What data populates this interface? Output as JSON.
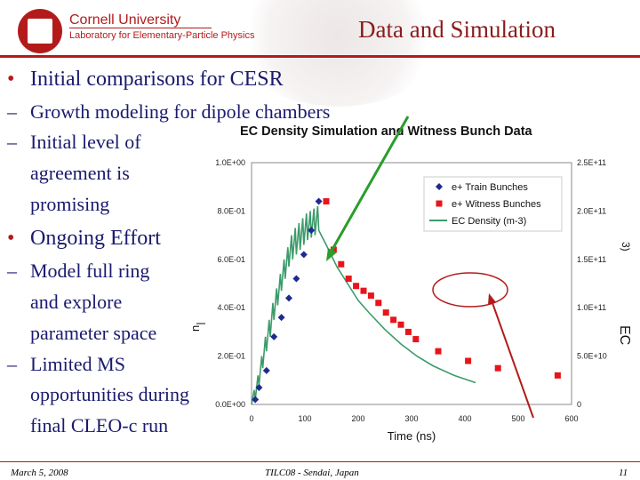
{
  "header": {
    "university": "Cornell University",
    "lab": "Laboratory for Elementary-Particle Physics",
    "title": "Data and Simulation"
  },
  "bullets": {
    "b1": "Initial comparisons for CESR",
    "b1_sub1": "Growth modeling for dipole chambers",
    "b1_sub2_l1": "Initial level of",
    "b1_sub2_l2": "agreement is",
    "b1_sub2_l3": "promising",
    "b2": "Ongoing Effort",
    "b2_sub1_l1": "Model full ring",
    "b2_sub1_l2": "and explore",
    "b2_sub1_l3": "parameter space",
    "b2_sub2_l1": "Limited MS",
    "b2_sub2_l2": "opportunities during",
    "b2_sub2_l3": "final CLEO-c run",
    "bullet_glyph": "•",
    "dash_glyph": "–"
  },
  "footer": {
    "date": "March 5, 2008",
    "venue": "TILC08 - Sendai, Japan",
    "page": "11"
  },
  "colors": {
    "accent": "#b31b1b",
    "bullet_text": "#1a1a6e",
    "train": "#1f2a8f",
    "witness": "#e8141a",
    "sim": "#3c9b6b",
    "green_arrow": "#2a9d2a",
    "red_annot": "#b31b1b"
  },
  "chart_data": {
    "type": "scatter",
    "title": "EC Density Simulation and Witness Bunch Data",
    "xlabel": "Time (ns)",
    "ylabel": "",
    "y2label": "",
    "xlim": [
      0,
      600
    ],
    "ylim": [
      0,
      1.0
    ],
    "y2lim": [
      0,
      250000000000
    ],
    "xticks": [
      "0",
      "100",
      "200",
      "300",
      "400",
      "500",
      "600"
    ],
    "yticks": [
      "0.0E+00",
      "2.0E-01",
      "4.0E-01",
      "6.0E-01",
      "8.0E-01",
      "1.0E+00"
    ],
    "y2ticks": [
      "0",
      "5.0E+10",
      "1.0E+11",
      "1.5E+11",
      "2.0E+11",
      "2.5E+11"
    ],
    "legend_position": "top-right",
    "series": [
      {
        "name": "e+ Train Bunches",
        "marker": "diamond",
        "x": [
          7,
          14,
          28,
          42,
          56,
          70,
          84,
          98,
          112,
          126
        ],
        "y": [
          0.02,
          0.07,
          0.14,
          0.28,
          0.36,
          0.44,
          0.52,
          0.62,
          0.72,
          0.84
        ]
      },
      {
        "name": "e+ Witness Bunches",
        "marker": "square",
        "x": [
          140,
          154,
          168,
          182,
          196,
          210,
          224,
          238,
          252,
          266,
          280,
          294,
          308,
          350,
          406,
          462,
          574
        ],
        "y": [
          0.84,
          0.64,
          0.58,
          0.52,
          0.49,
          0.47,
          0.45,
          0.42,
          0.38,
          0.35,
          0.33,
          0.3,
          0.27,
          0.22,
          0.18,
          0.15,
          0.12
        ]
      },
      {
        "name": "EC Density (m-3)",
        "line": true,
        "x": [
          0,
          5,
          7,
          12,
          14,
          19,
          21,
          26,
          28,
          33,
          35,
          40,
          42,
          47,
          49,
          54,
          56,
          61,
          63,
          68,
          70,
          75,
          77,
          82,
          84,
          89,
          91,
          96,
          98,
          103,
          105,
          110,
          112,
          117,
          119,
          124,
          126,
          140,
          160,
          180,
          200,
          220,
          250,
          280,
          310,
          340,
          380,
          420
        ],
        "y": [
          0.0,
          0.06,
          0.02,
          0.12,
          0.08,
          0.2,
          0.15,
          0.28,
          0.22,
          0.35,
          0.28,
          0.42,
          0.35,
          0.48,
          0.41,
          0.54,
          0.47,
          0.6,
          0.52,
          0.65,
          0.57,
          0.7,
          0.6,
          0.73,
          0.62,
          0.75,
          0.64,
          0.77,
          0.66,
          0.79,
          0.68,
          0.8,
          0.69,
          0.81,
          0.7,
          0.82,
          0.72,
          0.66,
          0.57,
          0.5,
          0.43,
          0.38,
          0.31,
          0.25,
          0.2,
          0.16,
          0.12,
          0.09
        ]
      }
    ]
  }
}
